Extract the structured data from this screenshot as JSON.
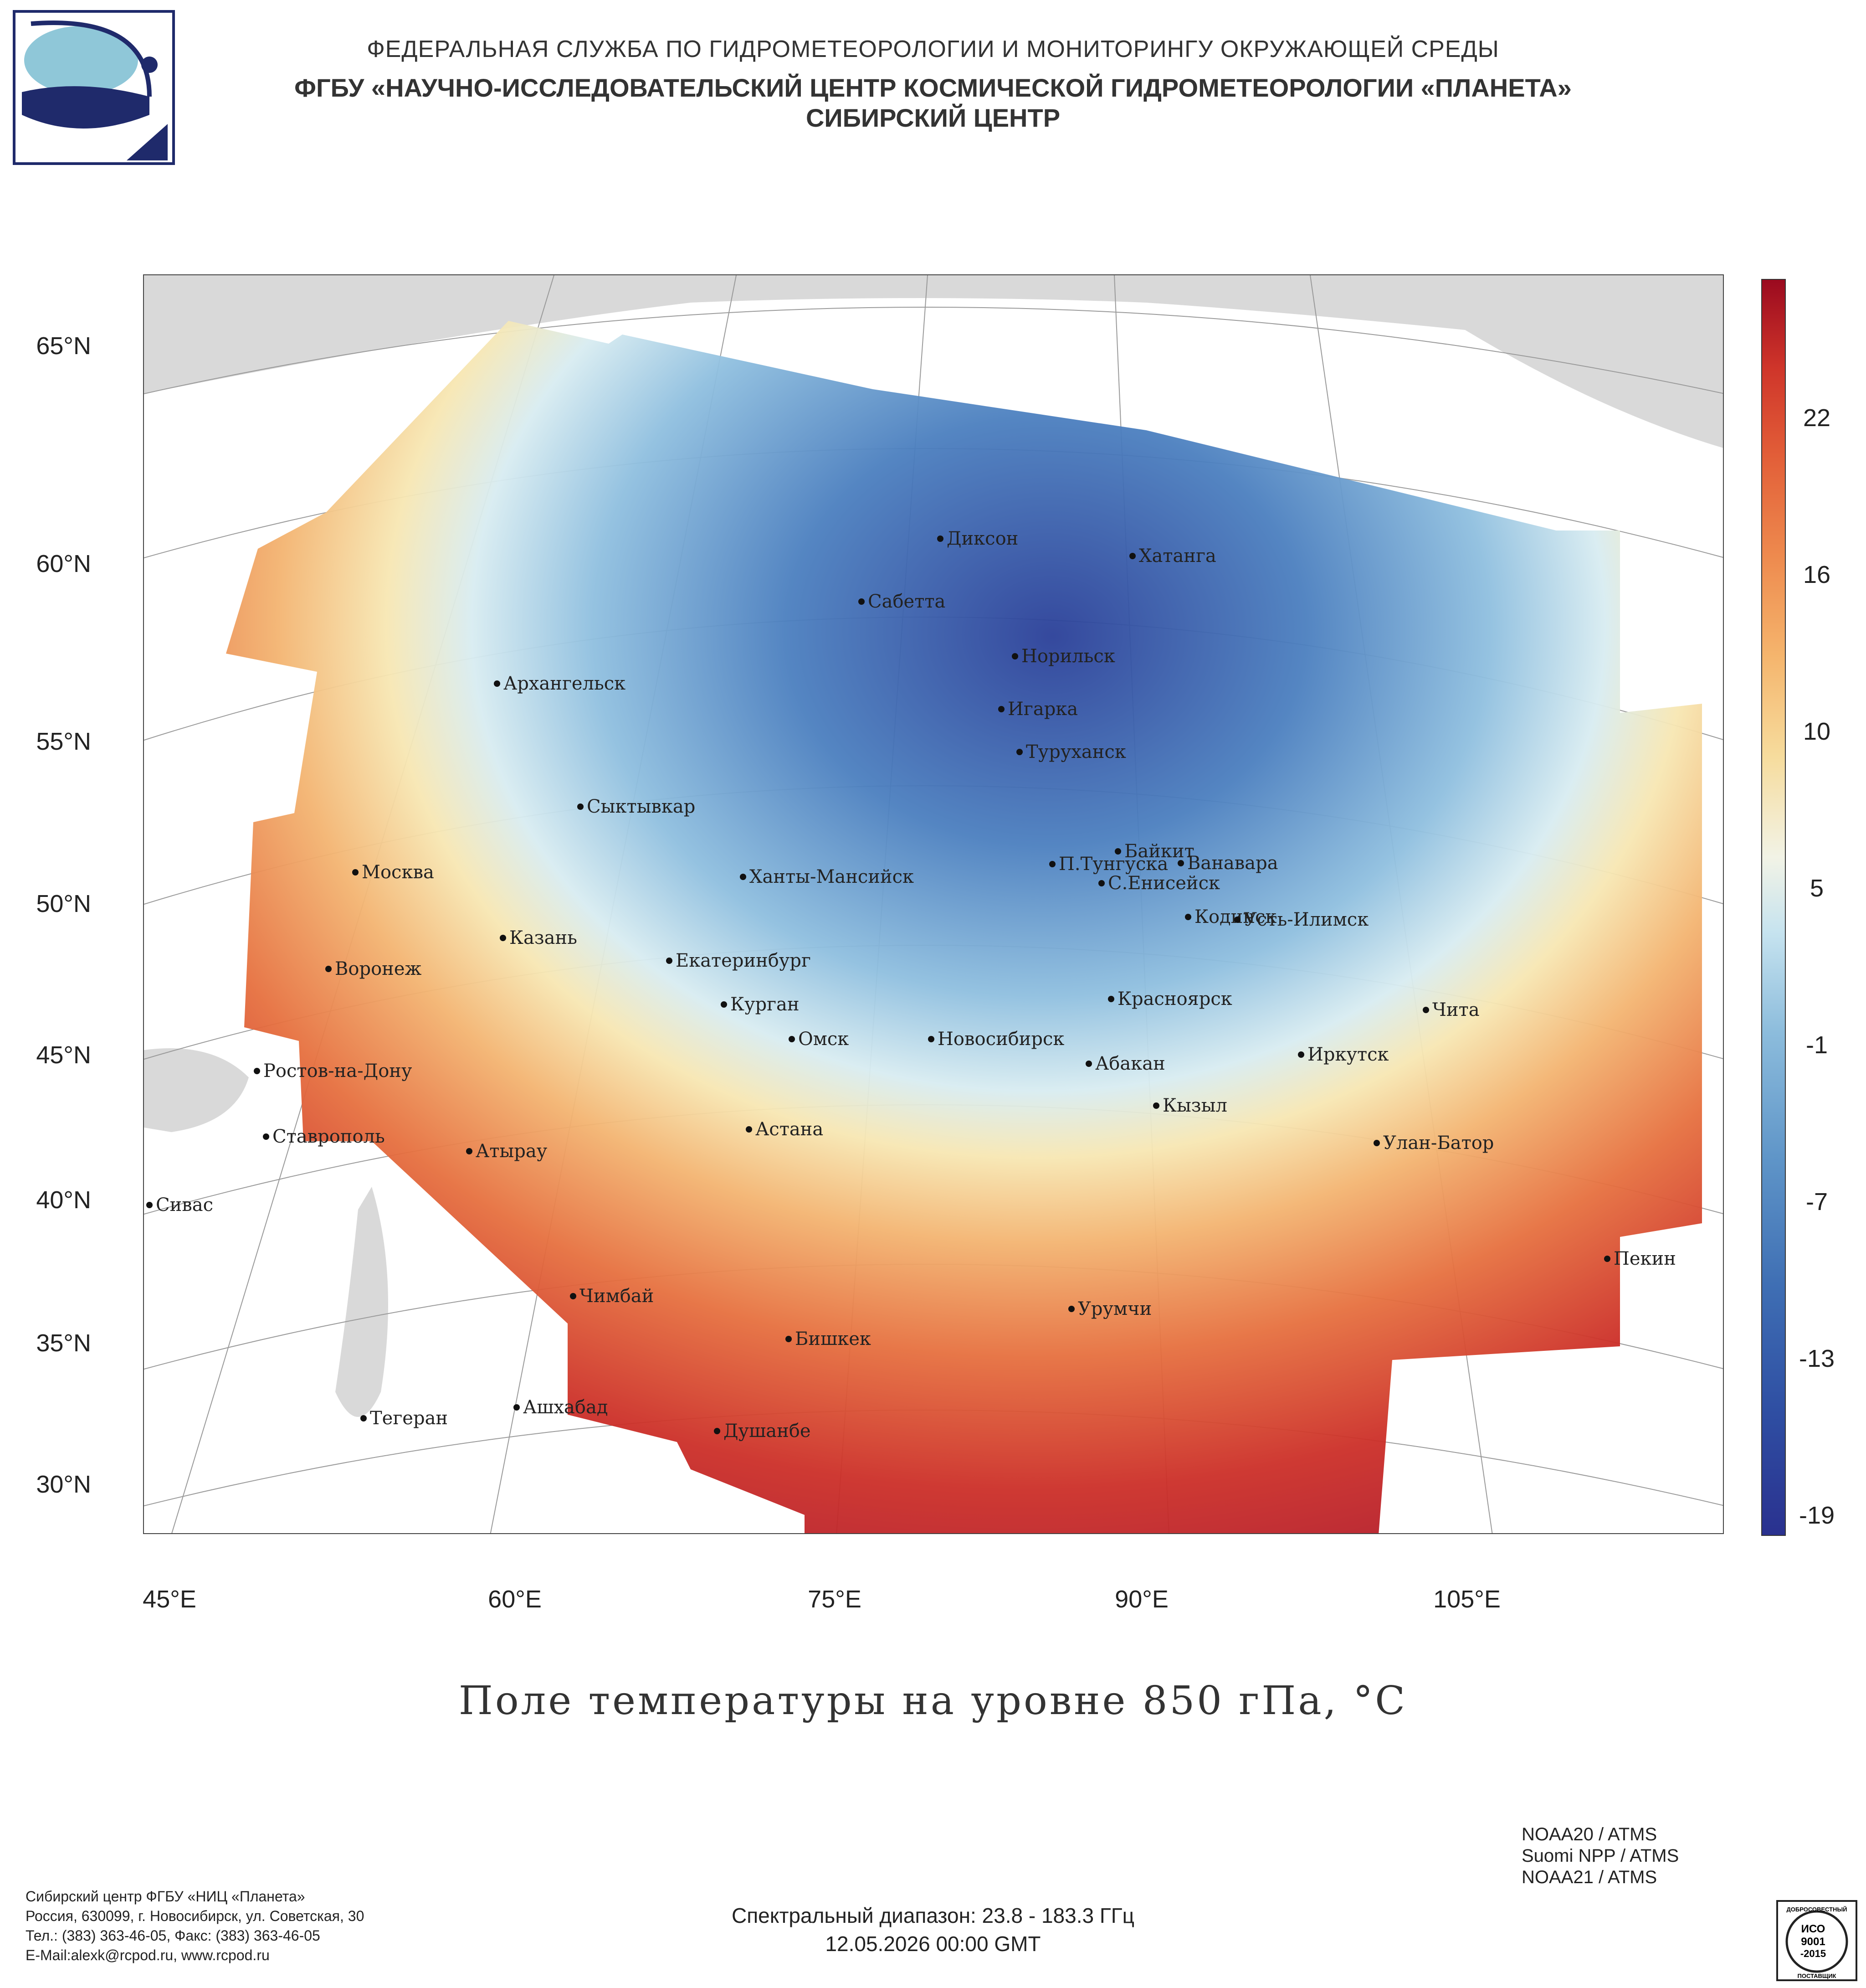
{
  "header": {
    "line1": "ФЕДЕРАЛЬНАЯ СЛУЖБА ПО ГИДРОМЕТЕОРОЛОГИИ И МОНИТОРИНГУ ОКРУЖАЮЩЕЙ СРЕДЫ",
    "line2": "ФГБУ «НАУЧНО-ИССЛЕДОВАТЕЛЬСКИЙ ЦЕНТР КОСМИЧЕСКОЙ ГИДРОМЕТЕОРОЛОГИИ «ПЛАНЕТА»",
    "line3": "СИБИРСКИЙ ЦЕНТР"
  },
  "map": {
    "lat_labels": [
      "65°N",
      "60°N",
      "55°N",
      "50°N",
      "45°N",
      "40°N",
      "35°N",
      "30°N"
    ],
    "lon_labels": [
      "45°E",
      "60°E",
      "75°E",
      "90°E",
      "105°E"
    ],
    "cities": [
      "Диксон",
      "Хатанга",
      "Сабетта",
      "Норильск",
      "Игарка",
      "Туруханск",
      "Архангельск",
      "Сыктывкар",
      "Байкит",
      "Ванавара",
      "П.Тунгуска",
      "С.Енисейск",
      "Кодинск",
      "Усть-Илимск",
      "Москва",
      "Ханты-Мансийск",
      "Казань",
      "Екатеринбург",
      "Воронеж",
      "Курган",
      "Красноярск",
      "Чита",
      "Омск",
      "Новосибирск",
      "Иркутск",
      "Абакан",
      "Ростов-на-Дону",
      "Кызыл",
      "Астана",
      "Ставрополь",
      "Атырау",
      "Улан-Батор",
      "Сивас",
      "Пекин",
      "Чимбай",
      "Урумчи",
      "Бишкек",
      "Ашхабад",
      "Тегеран",
      "Душанбе"
    ],
    "colors": {
      "cold": "#2a318f",
      "neutral": "#eef5f3",
      "warm": "#9b0a1f",
      "land": "#d9d9d9"
    }
  },
  "colorbar": {
    "ticks": [
      "22",
      "16",
      "10",
      "5",
      "-1",
      "-7",
      "-13",
      "-19"
    ]
  },
  "title": "Поле температуры на уровне 850 гПа, °C",
  "footer": {
    "org": "Сибирский центр ФГБУ «НИЦ «Планета»",
    "address": "Россия, 630099, г. Новосибирск, ул. Советская, 30",
    "phone": "Тел.: (383) 363-46-05, Факс: (383) 363-46-05",
    "email": "E-Mail:alexk@rcpod.ru, www.rcpod.ru",
    "spectral": "Спектральный диапазон: 23.8 - 183.3 ГГц",
    "datetime": "12.05.2026 00:00 GMT",
    "satellites": [
      "NOAA20 / ATMS",
      "Suomi NPP / ATMS",
      "NOAA21 / ATMS"
    ],
    "iso_lines": [
      "ДОБРОСОВЕСТНЫЙ",
      "ИСО",
      "9001",
      "-2015",
      "ПОСТАВЩИК"
    ]
  }
}
